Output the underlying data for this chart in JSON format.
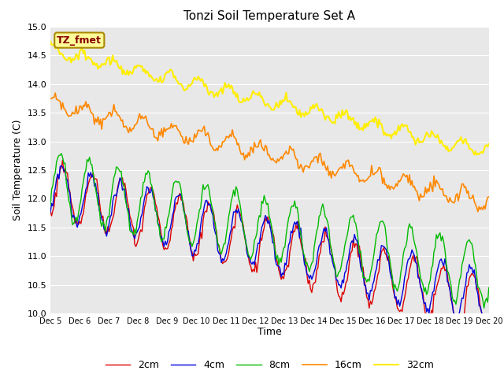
{
  "title": "Tonzi Soil Temperature Set A",
  "xlabel": "Time",
  "ylabel": "Soil Temperature (C)",
  "ylim": [
    10.0,
    15.0
  ],
  "yticks": [
    10.0,
    10.5,
    11.0,
    11.5,
    12.0,
    12.5,
    13.0,
    13.5,
    14.0,
    14.5,
    15.0
  ],
  "line_colors": {
    "2cm": "#dd0000",
    "4cm": "#0000dd",
    "8cm": "#00bb00",
    "16cm": "#ff8800",
    "32cm": "#ffee00"
  },
  "legend_labels": [
    "2cm",
    "4cm",
    "8cm",
    "16cm",
    "32cm"
  ],
  "n_points": 360,
  "annotation_text": "TZ_fmet",
  "annotation_facecolor": "#ffff99",
  "annotation_edgecolor": "#aa8800",
  "background_color": "#e8e8e8",
  "fig_facecolor": "#ffffff",
  "grid_color": "#ffffff",
  "title_fontsize": 11,
  "axis_fontsize": 9,
  "tick_fontsize": 8,
  "xtick_fontsize": 7
}
